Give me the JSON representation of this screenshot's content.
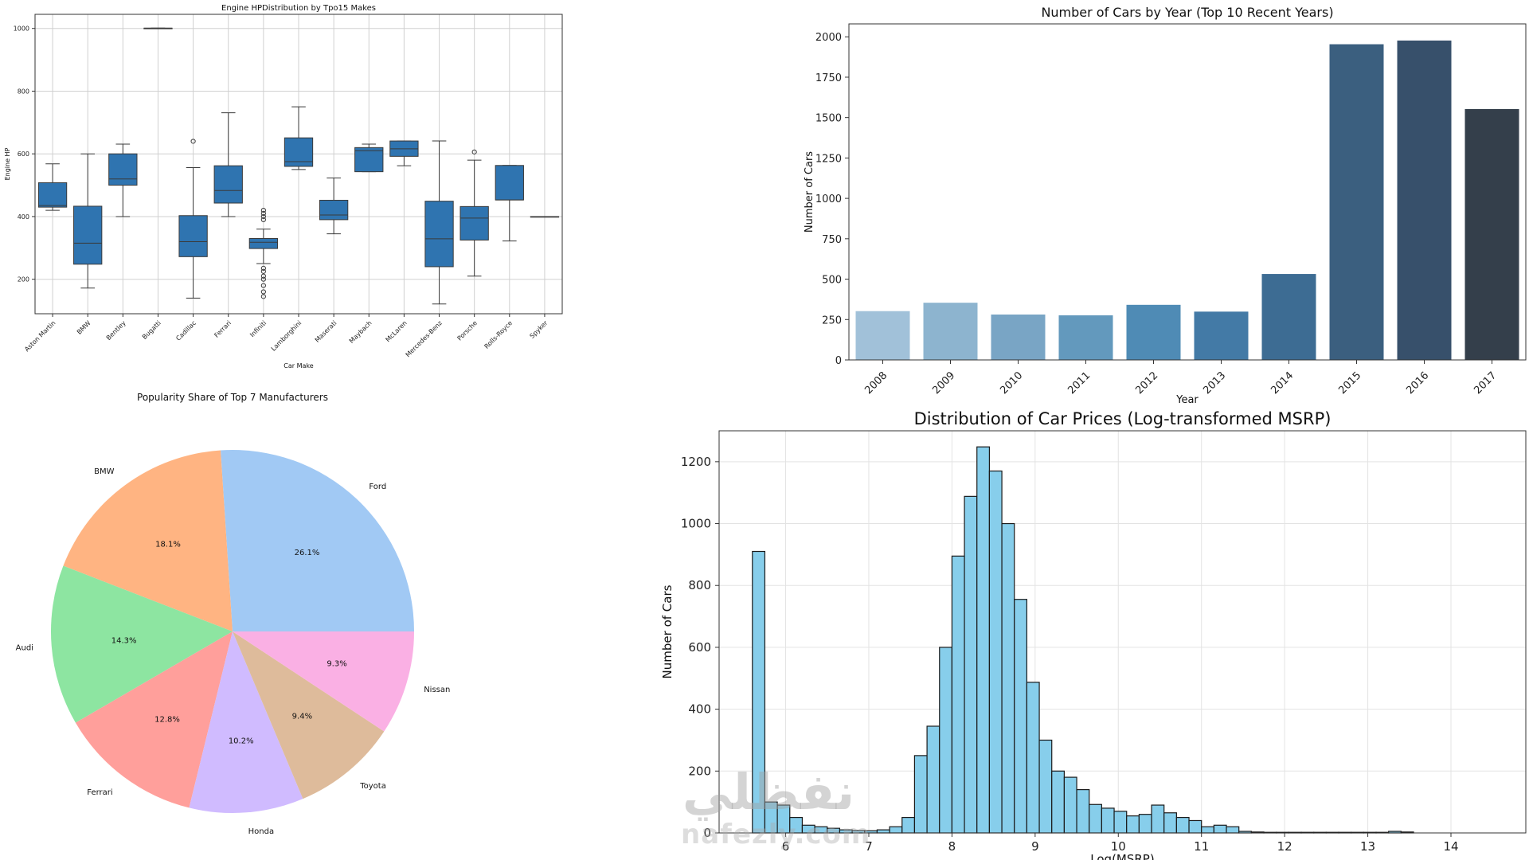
{
  "chart_data": [
    {
      "type": "boxplot",
      "title": "Engine HPDistribution by Tpo15 Makes",
      "xlabel": "Car Make",
      "ylabel": "Engine HP",
      "ylim": [
        90,
        1045
      ],
      "yticks": [
        200,
        400,
        600,
        800,
        1000
      ],
      "grid": true,
      "color": "#2f74b0",
      "categories": [
        "Aston Martin",
        "BMW",
        "Bentley",
        "Bugatti",
        "Cadillac",
        "Ferrari",
        "Infiniti",
        "Lamborghini",
        "Maserati",
        "Maybach",
        "McLaren",
        "Mercedes-Benz",
        "Porsche",
        "Rolls-Royce",
        "Spyker"
      ],
      "boxes": [
        {
          "whislo": 420,
          "q1": 430,
          "med": 435,
          "q3": 508,
          "whishi": 568,
          "fliers": []
        },
        {
          "whislo": 172,
          "q1": 248,
          "med": 315,
          "q3": 433,
          "whishi": 600,
          "fliers": []
        },
        {
          "whislo": 400,
          "q1": 500,
          "med": 520,
          "q3": 600,
          "whishi": 631,
          "fliers": []
        },
        {
          "whislo": 1001,
          "q1": 1001,
          "med": 1001,
          "q3": 1001,
          "whishi": 1001,
          "fliers": []
        },
        {
          "whislo": 140,
          "q1": 272,
          "med": 320,
          "q3": 403,
          "whishi": 556,
          "fliers": [
            640
          ]
        },
        {
          "whislo": 400,
          "q1": 443,
          "med": 483,
          "q3": 562,
          "whishi": 731,
          "fliers": []
        },
        {
          "whislo": 250,
          "q1": 298,
          "med": 318,
          "q3": 330,
          "whishi": 360,
          "fliers": [
            145,
            160,
            180,
            200,
            210,
            225,
            235,
            390,
            400,
            410,
            420
          ]
        },
        {
          "whislo": 550,
          "q1": 560,
          "med": 575,
          "q3": 651,
          "whishi": 750,
          "fliers": []
        },
        {
          "whislo": 345,
          "q1": 390,
          "med": 405,
          "q3": 452,
          "whishi": 523,
          "fliers": []
        },
        {
          "whislo": 543,
          "q1": 543,
          "med": 610,
          "q3": 620,
          "whishi": 631,
          "fliers": []
        },
        {
          "whislo": 562,
          "q1": 592,
          "med": 616,
          "q3": 641,
          "whishi": 641,
          "fliers": []
        },
        {
          "whislo": 121,
          "q1": 240,
          "med": 329,
          "q3": 449,
          "whishi": 641,
          "fliers": []
        },
        {
          "whislo": 210,
          "q1": 325,
          "med": 395,
          "q3": 432,
          "whishi": 580,
          "fliers": [
            606
          ]
        },
        {
          "whislo": 322,
          "q1": 453,
          "med": 453,
          "q3": 563,
          "whishi": 563,
          "fliers": []
        },
        {
          "whislo": 400,
          "q1": 400,
          "med": 400,
          "q3": 400,
          "whishi": 400,
          "fliers": []
        }
      ]
    },
    {
      "type": "bar",
      "title": "Number of Cars by Year (Top 10 Recent Years)",
      "xlabel": "Year",
      "ylabel": "Number of Cars",
      "ylim": [
        0,
        2080
      ],
      "yticks": [
        0,
        250,
        500,
        750,
        1000,
        1250,
        1500,
        1750,
        2000
      ],
      "grid": false,
      "categories": [
        "2008",
        "2009",
        "2010",
        "2011",
        "2012",
        "2013",
        "2014",
        "2015",
        "2016",
        "2017"
      ],
      "values": [
        302,
        354,
        281,
        276,
        341,
        299,
        532,
        1954,
        1977,
        1553
      ],
      "colors": [
        "#a1c1d9",
        "#8db4cf",
        "#79a5c5",
        "#6399bd",
        "#4f8bb5",
        "#437aa6",
        "#3d6c93",
        "#3b5f7f",
        "#37506b",
        "#343f4b"
      ]
    },
    {
      "type": "pie",
      "title": "Popularity Share of Top 7 Manufacturers",
      "slices": [
        {
          "label": "Ford",
          "pct": 26.1,
          "pct_label": "26.1%",
          "color": "#a1c9f4"
        },
        {
          "label": "BMW",
          "pct": 18.1,
          "pct_label": "18.1%",
          "color": "#ffb482"
        },
        {
          "label": "Audi",
          "pct": 14.3,
          "pct_label": "14.3%",
          "color": "#8de5a1"
        },
        {
          "label": "Ferrari",
          "pct": 12.8,
          "pct_label": "12.8%",
          "color": "#ff9f9b"
        },
        {
          "label": "Honda",
          "pct": 10.2,
          "pct_label": "10.2%",
          "color": "#d0bbff"
        },
        {
          "label": "Toyota",
          "pct": 9.4,
          "pct_label": "9.4%",
          "color": "#debb9b"
        },
        {
          "label": "Nissan",
          "pct": 9.3,
          "pct_label": "9.3%",
          "color": "#fab0e4"
        }
      ]
    },
    {
      "type": "histogram",
      "title": "Distribution of Car Prices (Log-transformed MSRP)",
      "xlabel": "Log(MSRP)",
      "ylabel": "Number of Cars",
      "xlim": [
        5.2,
        14.9
      ],
      "ylim": [
        0,
        1300
      ],
      "xticks": [
        6,
        7,
        8,
        9,
        10,
        11,
        12,
        13,
        14
      ],
      "yticks": [
        0,
        200,
        400,
        600,
        800,
        1000,
        1200
      ],
      "grid": true,
      "bar_color": "#87ceeb",
      "edge_color": "#1a1a1a",
      "bin_start": 5.6,
      "bin_width": 0.15,
      "counts": [
        910,
        100,
        90,
        50,
        25,
        20,
        15,
        10,
        8,
        7,
        10,
        20,
        50,
        250,
        345,
        600,
        895,
        1088,
        1248,
        1170,
        1000,
        755,
        487,
        300,
        200,
        180,
        140,
        92,
        80,
        70,
        55,
        60,
        90,
        65,
        50,
        40,
        20,
        25,
        20,
        5,
        3,
        2,
        2,
        2,
        2,
        2,
        2,
        2,
        2,
        2,
        2,
        5,
        3
      ]
    }
  ],
  "watermark": {
    "arabic": "نفظلي",
    "latin": "nafezly.com"
  }
}
